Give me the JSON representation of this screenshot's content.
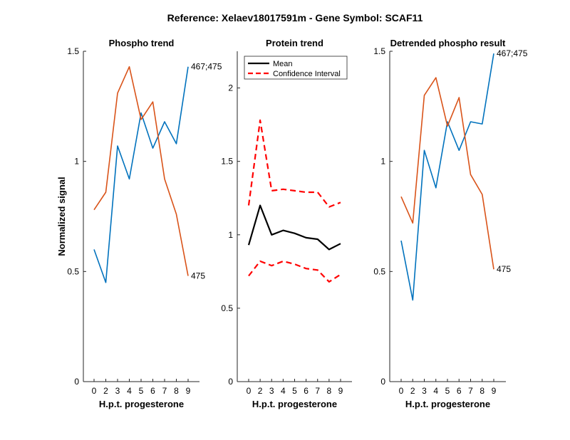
{
  "figure_title": "Reference:  Xelaev18017591m - Gene Symbol:  SCAF11",
  "colors": {
    "blue": "#0072BD",
    "orange": "#D95319",
    "black": "#000000",
    "red": "#FF0000"
  },
  "chart_data": [
    {
      "type": "line",
      "title": "Phospho trend",
      "xlabel": "H.p.t. progesterone",
      "ylabel": "Normalized signal",
      "categories": [
        "0",
        "2",
        "3",
        "4",
        "5",
        "6",
        "7",
        "8",
        "9"
      ],
      "ylim": [
        0,
        1.5
      ],
      "yticks": [
        "0",
        "0.5",
        "1",
        "1.5"
      ],
      "series": [
        {
          "values": [
            0.6,
            0.45,
            1.07,
            0.92,
            1.22,
            1.06,
            1.18,
            1.08,
            1.43
          ],
          "color": "#0072BD",
          "end_label": "467;475"
        },
        {
          "values": [
            0.78,
            0.86,
            1.31,
            1.43,
            1.19,
            1.27,
            0.92,
            0.76,
            0.48
          ],
          "color": "#D95319",
          "end_label": "475"
        }
      ]
    },
    {
      "type": "line",
      "title": "Protein trend",
      "xlabel": "H.p.t. progesterone",
      "ylabel": "",
      "categories": [
        "0",
        "2",
        "3",
        "4",
        "5",
        "6",
        "7",
        "8",
        "9"
      ],
      "ylim": [
        0,
        2.25
      ],
      "yticks": [
        "0",
        "0.5",
        "1",
        "1.5",
        "2"
      ],
      "legend": {
        "position": "top-left",
        "entries": [
          "Mean",
          "Confidence Interval"
        ]
      },
      "series": [
        {
          "name": "Mean",
          "values": [
            0.93,
            1.2,
            1.0,
            1.03,
            1.01,
            0.98,
            0.97,
            0.9,
            0.94
          ],
          "color": "#000000",
          "style": "solid"
        },
        {
          "name": "Confidence Interval",
          "values": [
            1.2,
            1.78,
            1.3,
            1.31,
            1.3,
            1.29,
            1.29,
            1.19,
            1.22
          ],
          "color": "#FF0000",
          "style": "dashed"
        },
        {
          "values": [
            0.72,
            0.82,
            0.79,
            0.82,
            0.8,
            0.77,
            0.76,
            0.68,
            0.73
          ],
          "color": "#FF0000",
          "style": "dashed"
        }
      ]
    },
    {
      "type": "line",
      "title": "Detrended phospho result",
      "xlabel": "H.p.t. progesterone",
      "ylabel": "",
      "categories": [
        "0",
        "2",
        "3",
        "4",
        "5",
        "6",
        "7",
        "8",
        "9"
      ],
      "ylim": [
        0,
        1.5
      ],
      "yticks": [
        "0",
        "0.5",
        "1",
        "1.5"
      ],
      "series": [
        {
          "values": [
            0.64,
            0.37,
            1.05,
            0.88,
            1.18,
            1.05,
            1.18,
            1.17,
            1.49
          ],
          "color": "#0072BD",
          "end_label": "467;475"
        },
        {
          "values": [
            0.84,
            0.72,
            1.3,
            1.38,
            1.16,
            1.29,
            0.94,
            0.85,
            0.51
          ],
          "color": "#D95319",
          "end_label": "475"
        }
      ]
    }
  ]
}
